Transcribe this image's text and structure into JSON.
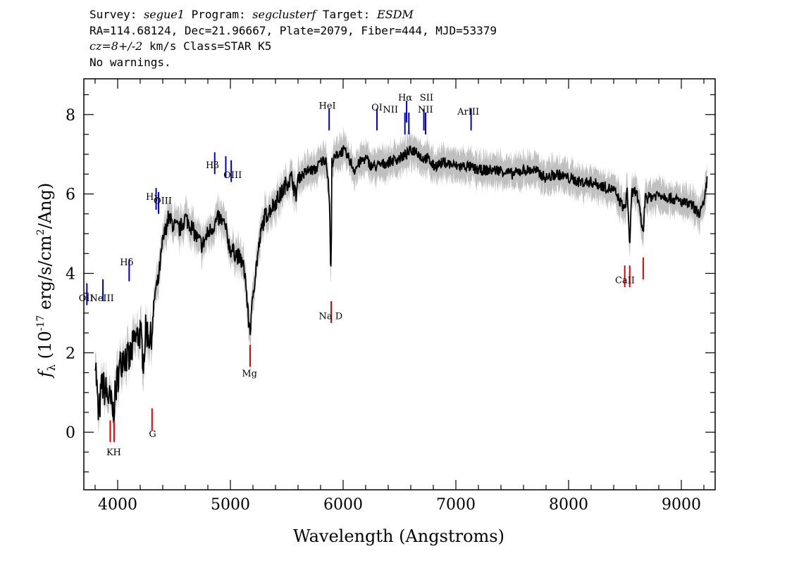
{
  "header": {
    "line1": {
      "survey_label": "Survey: ",
      "survey": "segue1",
      "program_label": " Program: ",
      "program": "segclusterf",
      "target_label": " Target: ",
      "target": "ESDM"
    },
    "line2": "RA=114.68124, Dec=21.96667, Plate=2079, Fiber=444, MJD=53379",
    "line3": {
      "cz": "cz=8+/-2",
      "rest": " km/s Class=STAR K5"
    },
    "line4": "No warnings."
  },
  "chart_data": {
    "type": "line",
    "xlabel": "Wavelength (Angstroms)",
    "ylabel": "f_λ (10^-17 erg/s/cm^2/Ang)",
    "xlim": [
      3700,
      9300
    ],
    "ylim": [
      -1.45,
      8.9
    ],
    "x_ticks": [
      4000,
      5000,
      6000,
      7000,
      8000,
      9000
    ],
    "y_ticks": [
      0,
      2,
      4,
      6,
      8
    ],
    "series": [
      {
        "color": "#000000",
        "x": [
          3800,
          3830,
          3860,
          3900,
          3930,
          3960,
          4000,
          4050,
          4100,
          4150,
          4200,
          4230,
          4250,
          4280,
          4300,
          4330,
          4360,
          4400,
          4450,
          4500,
          4550,
          4600,
          4650,
          4700,
          4750,
          4800,
          4850,
          4900,
          4950,
          5000,
          5050,
          5100,
          5130,
          5160,
          5180,
          5200,
          5230,
          5270,
          5300,
          5350,
          5400,
          5450,
          5500,
          5550,
          5580,
          5600,
          5650,
          5700,
          5750,
          5800,
          5850,
          5880,
          5890,
          5895,
          5900,
          5950,
          6000,
          6050,
          6100,
          6150,
          6200,
          6250,
          6300,
          6400,
          6500,
          6563,
          6600,
          6650,
          6700,
          6750,
          6800,
          6900,
          7000,
          7100,
          7200,
          7300,
          7400,
          7500,
          7600,
          7700,
          7800,
          7900,
          8000,
          8100,
          8200,
          8300,
          8400,
          8498,
          8520,
          8542,
          8560,
          8600,
          8662,
          8680,
          8700,
          8800,
          8900,
          9000,
          9100,
          9150,
          9200,
          9230
        ],
        "y": [
          2.0,
          0.3,
          1.2,
          1.0,
          0.8,
          0.5,
          1.4,
          2.0,
          1.8,
          2.3,
          2.5,
          1.8,
          2.6,
          2.4,
          2.3,
          3.5,
          3.8,
          4.8,
          5.4,
          5.2,
          5.1,
          5.4,
          5.2,
          4.9,
          4.7,
          5.0,
          5.2,
          5.4,
          5.2,
          4.6,
          4.5,
          4.3,
          4.0,
          2.8,
          2.6,
          3.5,
          4.2,
          5.0,
          5.4,
          5.6,
          5.8,
          6.0,
          6.3,
          6.4,
          5.9,
          6.4,
          6.5,
          6.6,
          6.6,
          6.8,
          6.9,
          5.8,
          3.9,
          4.5,
          6.8,
          7.0,
          7.1,
          6.9,
          6.6,
          6.8,
          6.9,
          6.7,
          6.7,
          6.8,
          6.9,
          7.0,
          7.1,
          7.1,
          6.9,
          6.9,
          6.7,
          6.8,
          6.7,
          6.7,
          6.6,
          6.6,
          6.6,
          6.5,
          6.6,
          6.6,
          6.4,
          6.5,
          6.4,
          6.3,
          6.3,
          6.2,
          6.1,
          5.6,
          6.1,
          4.7,
          6.0,
          6.1,
          5.0,
          6.0,
          5.9,
          6.0,
          5.9,
          5.8,
          5.7,
          5.5,
          5.7,
          6.4
        ]
      }
    ],
    "emission_lines": [
      {
        "label": "OII",
        "x": 3727,
        "y": 3.2
      },
      {
        "label": "NeIII",
        "x": 3869,
        "y": 3.3
      },
      {
        "label": "Hδ",
        "x": 4102,
        "y": 3.8
      },
      {
        "label": "Hγ",
        "x": 4341,
        "y": 5.6
      },
      {
        "label": "OIII",
        "x": 4363,
        "y": 5.5
      },
      {
        "label": "Hβ",
        "x": 4861,
        "y": 6.5
      },
      {
        "label": "OIII",
        "x": 4959,
        "y": 6.4
      },
      {
        "label": "OIII",
        "x": 5007,
        "y": 6.3
      },
      {
        "label": "HeI",
        "x": 5876,
        "y": 7.6
      },
      {
        "label": "OI",
        "x": 6300,
        "y": 7.6
      },
      {
        "label": "NII",
        "x": 6548,
        "y": 7.5
      },
      {
        "label": "Hα",
        "x": 6563,
        "y": 7.8
      },
      {
        "label": "NII",
        "x": 6583,
        "y": 7.5
      },
      {
        "label": "SII",
        "x": 6716,
        "y": 7.6
      },
      {
        "label": "SII",
        "x": 6731,
        "y": 7.5
      },
      {
        "label": "ArIII",
        "x": 7135,
        "y": 7.6
      }
    ],
    "absorption_lines": [
      {
        "label": "K",
        "x": 3934,
        "y": 0.3
      },
      {
        "label": "H",
        "x": 3968,
        "y": 0.3
      },
      {
        "label": "G",
        "x": 4305,
        "y": 0.6
      },
      {
        "label": "Mg",
        "x": 5175,
        "y": 2.2
      },
      {
        "label": "Na D",
        "x": 5894,
        "y": 3.3
      },
      {
        "label": "CaII",
        "x": 8498,
        "y": 4.2
      },
      {
        "label": "CaII",
        "x": 8542,
        "y": 4.2
      },
      {
        "label": "CaII",
        "x": 8662,
        "y": 4.4
      }
    ],
    "emission_label_texts": [
      "OII",
      "NeIII",
      "Hδ",
      "Hγ",
      "OIII",
      "Hβ",
      "OIII",
      "HeI",
      "OI",
      "NII",
      "Hα",
      "SII",
      "NII",
      "ArIII"
    ],
    "absorption_label_texts": [
      "K",
      "H",
      "G",
      "Mg",
      "Na D",
      "CaII"
    ],
    "colors": {
      "flux": "#000000",
      "noise": "#c0c0c0",
      "emission": "#0000cc",
      "absorption": "#dd0000"
    }
  }
}
